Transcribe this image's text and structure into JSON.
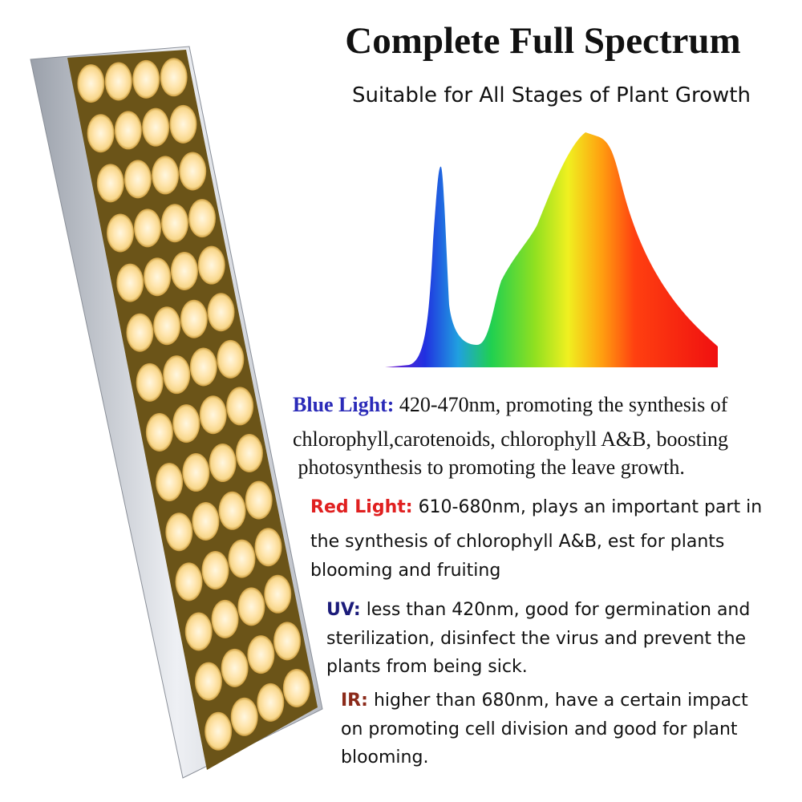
{
  "title": "Complete Full Spectrum",
  "subtitle": "Suitable for All Stages of Plant Growth",
  "sections": [
    {
      "label": "Blue Light:",
      "lines": [
        "420-470nm, promoting the synthesis of",
        "chlorophyll,carotenoids, chlorophyll A&B, boosting",
        " photosynthesis to promoting the leave growth."
      ]
    },
    {
      "label": "Red Light:",
      "lines": [
        "610-680nm, plays an important part in",
        "the synthesis of chlorophyll A&B, est for plants",
        "blooming and fruiting"
      ]
    },
    {
      "label": "UV:",
      "lines": [
        "less than 420nm, good for germination and",
        "sterilization, disinfect the virus and prevent the",
        "plants from being sick."
      ]
    },
    {
      "label": "IR:",
      "lines": [
        "higher than 680nm, have a certain impact",
        "on promoting cell division and good for plant",
        "blooming."
      ]
    }
  ]
}
